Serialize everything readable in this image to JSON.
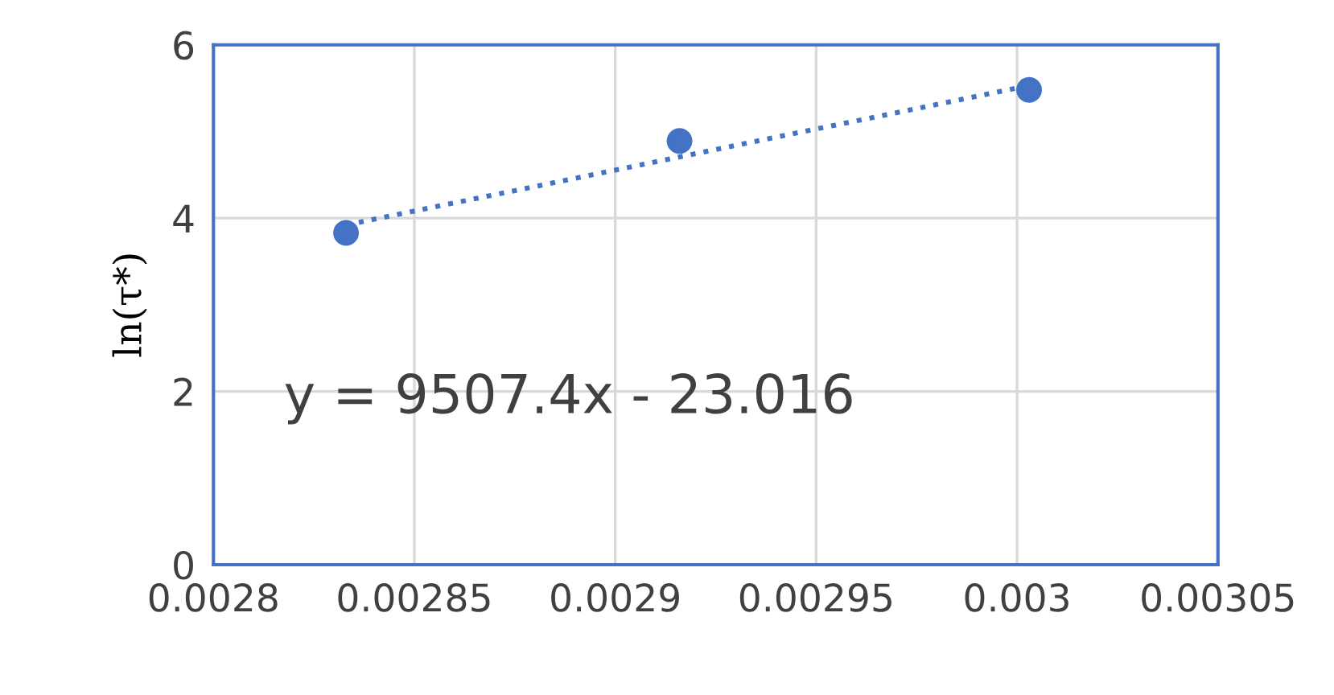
{
  "chart_data": {
    "type": "scatter",
    "ylabel": "ln(τ*)",
    "x": [
      0.002833,
      0.002916,
      0.003003
    ],
    "series": [
      {
        "color": "#4472c4",
        "values": [
          3.83,
          4.89,
          5.48
        ],
        "marker": "circle"
      },
      {
        "type": "line",
        "color": "#4472c4",
        "x": [
          0.002833,
          0.003003
        ],
        "values": [
          3.92,
          5.53
        ],
        "line_style": "dotted",
        "marker": "none"
      }
    ],
    "xlim": [
      0.0028,
      0.00305
    ],
    "xticks": [
      0.0028,
      0.00285,
      0.0029,
      0.00295,
      0.003,
      0.00305
    ],
    "ylim": [
      0,
      6
    ],
    "yticks": [
      0,
      2,
      4,
      6
    ],
    "grid": true,
    "legend": false,
    "annotations": [
      "y = 9507.4x - 23.016"
    ]
  }
}
